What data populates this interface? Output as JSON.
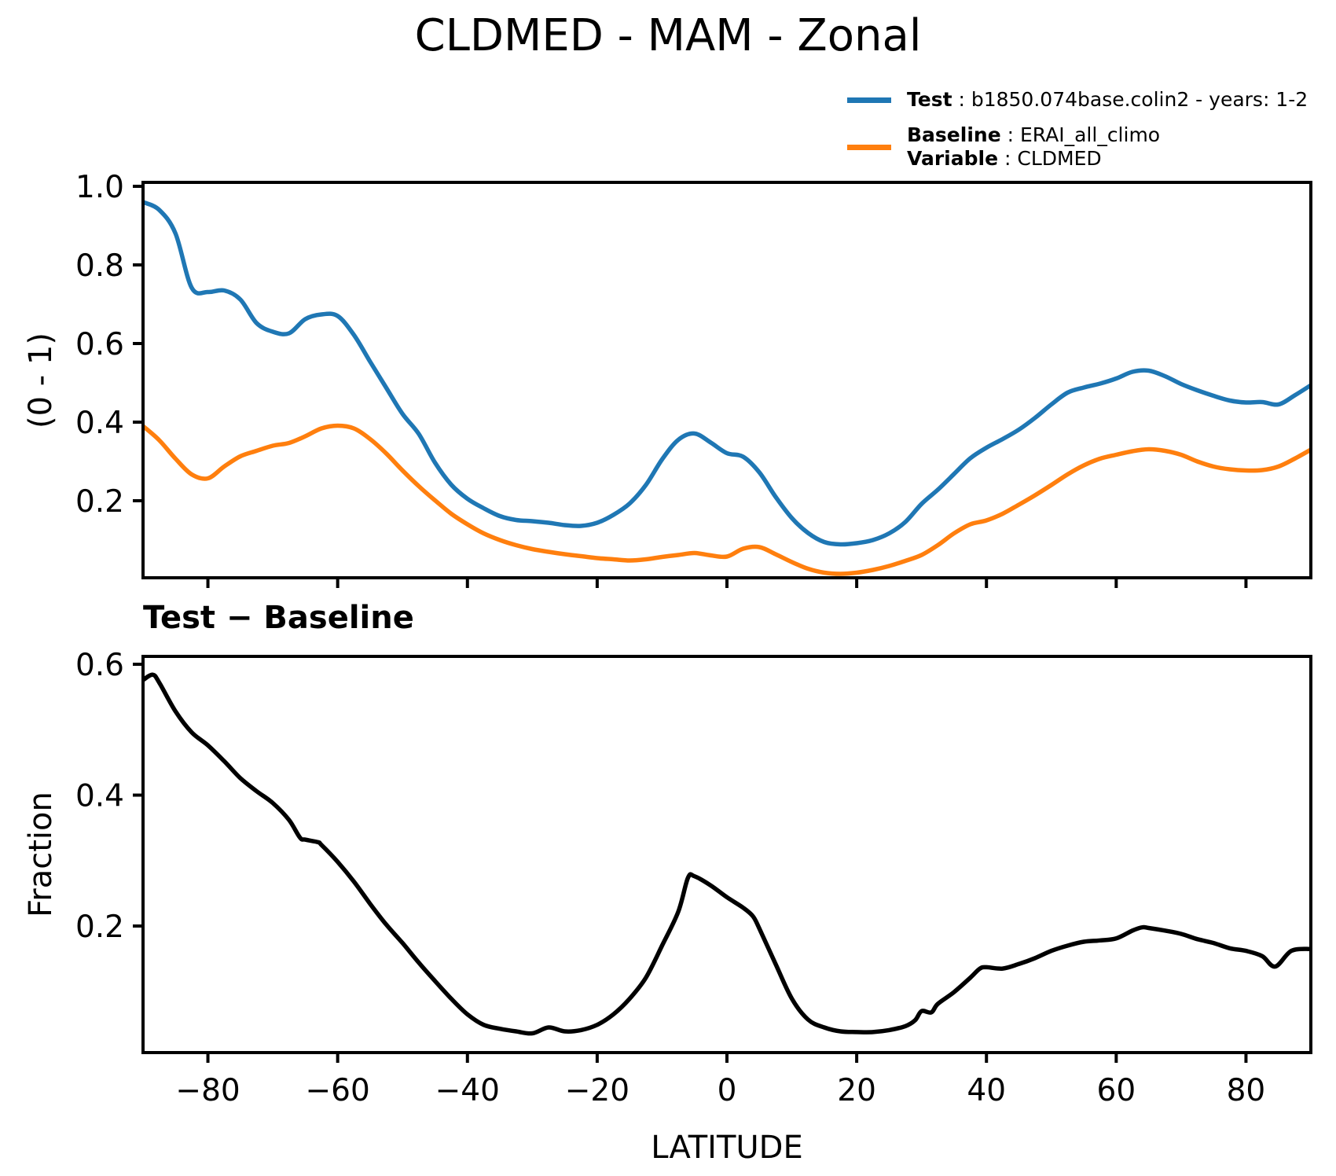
{
  "title": "CLDMED - MAM - Zonal",
  "legend": {
    "separator": " : ",
    "entries": [
      {
        "name": "test",
        "color": "#1f77b4",
        "lines": [
          {
            "key": "Test",
            "value": "b1850.074base.colin2 - years: 1-2"
          }
        ]
      },
      {
        "name": "baseline",
        "color": "#ff7f0e",
        "lines": [
          {
            "key": "Baseline",
            "value": "ERAI_all_climo"
          },
          {
            "key": "Variable",
            "value": "CLDMED"
          }
        ]
      }
    ]
  },
  "axis_color": "#000000",
  "chart_data": [
    {
      "type": "line",
      "title": "CLDMED - MAM - Zonal",
      "ylabel": "(0 - 1)",
      "xlabel": "",
      "xlim": [
        -90,
        90
      ],
      "ylim": [
        0.004,
        1.01
      ],
      "grid": false,
      "legend_position": "upper right, above axes",
      "ytick_values": [
        1.0,
        0.8,
        0.6,
        0.4,
        0.2
      ],
      "ytick_labels": [
        "1.0",
        "0.8",
        "0.6",
        "0.4",
        "0.2"
      ],
      "xtick_values": [
        -80,
        -60,
        -40,
        -20,
        0,
        20,
        40,
        60,
        80
      ],
      "show_xtick_labels": false,
      "series": [
        {
          "name": "Test",
          "color": "#1f77b4",
          "x": [
            -90,
            -87.5,
            -85,
            -82.5,
            -80,
            -77.5,
            -75,
            -72.5,
            -70,
            -67.5,
            -65,
            -62.5,
            -60,
            -57.5,
            -55,
            -52.5,
            -50,
            -47.5,
            -45,
            -42.5,
            -40,
            -37.5,
            -35,
            -32.5,
            -30,
            -27.5,
            -25,
            -22.5,
            -20,
            -17.5,
            -15,
            -12.5,
            -10,
            -7.5,
            -5,
            -2.5,
            0,
            2.5,
            5,
            7.5,
            10,
            12.5,
            15,
            17.5,
            20,
            22.5,
            25,
            27.5,
            30,
            32.5,
            35,
            37.5,
            40,
            42.5,
            45,
            47.5,
            50,
            52.5,
            55,
            57.5,
            60,
            62.5,
            65,
            67.5,
            70,
            72.5,
            75,
            77.5,
            80,
            82.5,
            85,
            87.5,
            90
          ],
          "y": [
            0.96,
            0.94,
            0.88,
            0.742,
            0.731,
            0.735,
            0.712,
            0.652,
            0.63,
            0.626,
            0.662,
            0.674,
            0.67,
            0.622,
            0.554,
            0.487,
            0.421,
            0.37,
            0.297,
            0.241,
            0.205,
            0.181,
            0.161,
            0.151,
            0.148,
            0.144,
            0.138,
            0.136,
            0.144,
            0.164,
            0.193,
            0.24,
            0.305,
            0.355,
            0.371,
            0.348,
            0.321,
            0.312,
            0.272,
            0.21,
            0.156,
            0.118,
            0.095,
            0.089,
            0.092,
            0.1,
            0.117,
            0.146,
            0.192,
            0.228,
            0.268,
            0.308,
            0.335,
            0.357,
            0.381,
            0.411,
            0.445,
            0.475,
            0.488,
            0.498,
            0.511,
            0.528,
            0.531,
            0.517,
            0.497,
            0.481,
            0.467,
            0.455,
            0.45,
            0.451,
            0.445,
            0.468,
            0.494
          ]
        },
        {
          "name": "Baseline",
          "color": "#ff7f0e",
          "x": [
            -90,
            -87.5,
            -85,
            -82.5,
            -80,
            -77.5,
            -75,
            -72.5,
            -70,
            -67.5,
            -65,
            -62.5,
            -60,
            -57.5,
            -55,
            -52.5,
            -50,
            -47.5,
            -45,
            -42.5,
            -40,
            -37.5,
            -35,
            -32.5,
            -30,
            -27.5,
            -25,
            -22.5,
            -20,
            -17.5,
            -15,
            -12.5,
            -10,
            -7.5,
            -5,
            -2.5,
            0,
            2.5,
            5,
            7.5,
            10,
            12.5,
            15,
            17.5,
            20,
            22.5,
            25,
            27.5,
            30,
            32.5,
            35,
            37.5,
            40,
            42.5,
            45,
            47.5,
            50,
            52.5,
            55,
            57.5,
            60,
            62.5,
            65,
            67.5,
            70,
            72.5,
            75,
            77.5,
            80,
            82.5,
            85,
            87.5,
            90
          ],
          "y": [
            0.39,
            0.354,
            0.307,
            0.267,
            0.257,
            0.287,
            0.313,
            0.327,
            0.34,
            0.347,
            0.364,
            0.384,
            0.391,
            0.384,
            0.357,
            0.32,
            0.277,
            0.237,
            0.201,
            0.167,
            0.14,
            0.117,
            0.1,
            0.087,
            0.077,
            0.07,
            0.064,
            0.059,
            0.054,
            0.051,
            0.048,
            0.051,
            0.057,
            0.062,
            0.067,
            0.061,
            0.058,
            0.078,
            0.082,
            0.064,
            0.044,
            0.027,
            0.017,
            0.014,
            0.017,
            0.024,
            0.034,
            0.047,
            0.062,
            0.087,
            0.117,
            0.14,
            0.15,
            0.167,
            0.19,
            0.214,
            0.24,
            0.267,
            0.29,
            0.307,
            0.317,
            0.326,
            0.331,
            0.327,
            0.317,
            0.3,
            0.287,
            0.28,
            0.277,
            0.278,
            0.287,
            0.307,
            0.33
          ]
        }
      ]
    },
    {
      "type": "line",
      "title": "Test − Baseline",
      "ylabel": "Fraction",
      "xlabel": "LATITUDE",
      "xlim": [
        -90,
        90
      ],
      "ylim": [
        0.007,
        0.612
      ],
      "grid": false,
      "ytick_values": [
        0.6,
        0.4,
        0.2
      ],
      "ytick_labels": [
        "0.6",
        "0.4",
        "0.2"
      ],
      "xtick_values": [
        -80,
        -60,
        -40,
        -20,
        0,
        20,
        40,
        60,
        80
      ],
      "xtick_labels": [
        "−80",
        "−60",
        "−40",
        "−20",
        "0",
        "20",
        "40",
        "60",
        "80"
      ],
      "show_xtick_labels": true,
      "series": [
        {
          "name": "Test − Baseline",
          "color": "#000000",
          "x": [
            -90,
            -88.5,
            -87.5,
            -85,
            -82.5,
            -80,
            -77.5,
            -75,
            -72.5,
            -70,
            -67.5,
            -65.8,
            -65,
            -63,
            -62.5,
            -60,
            -57.5,
            -55,
            -52.5,
            -50,
            -47.5,
            -45,
            -42.5,
            -40,
            -37.5,
            -35,
            -32.5,
            -30,
            -27.5,
            -25,
            -22.5,
            -20,
            -17.5,
            -15,
            -12.5,
            -10,
            -7.5,
            -6,
            -5,
            -2.5,
            0,
            2.5,
            4,
            5,
            7.5,
            10,
            12.5,
            15,
            17.5,
            20,
            22.5,
            25,
            27.5,
            29,
            30,
            31.5,
            32.5,
            35,
            37.5,
            39,
            40,
            42.5,
            45,
            47.5,
            50,
            52.5,
            55,
            57.5,
            60,
            62.5,
            64,
            65,
            67.5,
            70,
            72.5,
            75,
            77.5,
            80,
            82.5,
            84.5,
            87,
            90
          ],
          "y": [
            0.576,
            0.584,
            0.572,
            0.528,
            0.496,
            0.476,
            0.452,
            0.426,
            0.406,
            0.388,
            0.362,
            0.335,
            0.332,
            0.328,
            0.324,
            0.298,
            0.268,
            0.234,
            0.202,
            0.174,
            0.144,
            0.116,
            0.089,
            0.065,
            0.049,
            0.043,
            0.039,
            0.036,
            0.045,
            0.039,
            0.041,
            0.049,
            0.065,
            0.089,
            0.121,
            0.17,
            0.222,
            0.274,
            0.276,
            0.262,
            0.244,
            0.228,
            0.215,
            0.196,
            0.142,
            0.089,
            0.057,
            0.045,
            0.039,
            0.038,
            0.038,
            0.041,
            0.047,
            0.056,
            0.07,
            0.068,
            0.081,
            0.099,
            0.121,
            0.135,
            0.137,
            0.135,
            0.142,
            0.151,
            0.162,
            0.17,
            0.176,
            0.178,
            0.181,
            0.193,
            0.198,
            0.197,
            0.193,
            0.188,
            0.18,
            0.174,
            0.166,
            0.162,
            0.154,
            0.138,
            0.162,
            0.165
          ]
        }
      ]
    }
  ]
}
